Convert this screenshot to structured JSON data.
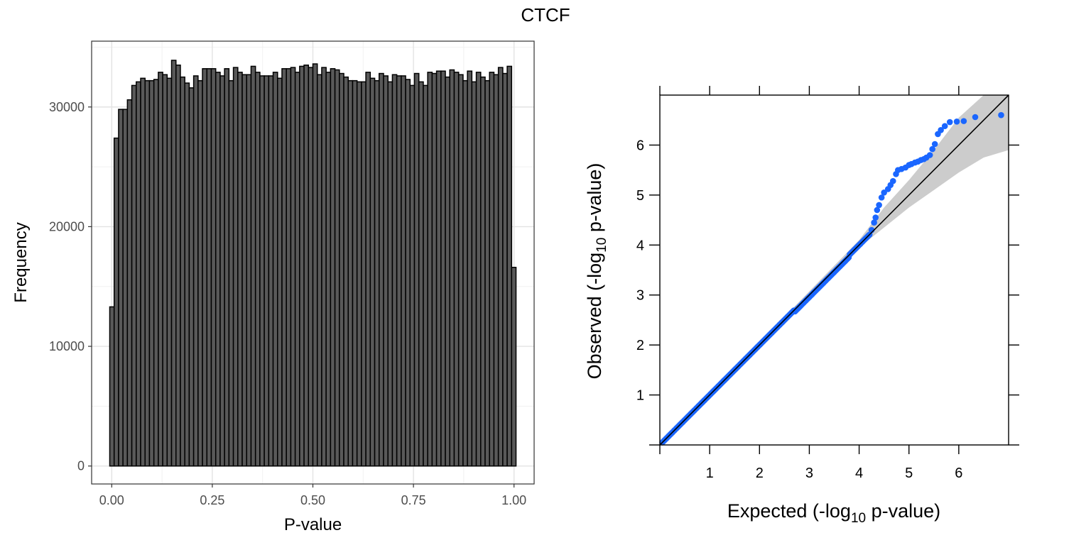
{
  "title": "CTCF",
  "chart_data": [
    {
      "type": "bar",
      "xlabel": "P-value",
      "ylabel": "Frequency",
      "xlim": [
        -0.05,
        1.05
      ],
      "ylim": [
        -1500,
        35500
      ],
      "xticks": [
        0,
        0.25,
        0.5,
        0.75,
        1
      ],
      "xtick_labels": [
        "0.00",
        "0.25",
        "0.50",
        "0.75",
        "1.00"
      ],
      "yticks": [
        0,
        10000,
        20000,
        30000
      ],
      "ytick_labels": [
        "0",
        "10000",
        "20000",
        "30000"
      ],
      "grid": true,
      "bin_range": [
        -0.005,
        1.005
      ],
      "values": [
        13300,
        27400,
        29800,
        29800,
        30600,
        31800,
        32100,
        32400,
        32200,
        32200,
        32300,
        32900,
        32700,
        32400,
        33900,
        33500,
        32500,
        32000,
        31600,
        32600,
        32200,
        33200,
        33200,
        33200,
        32900,
        32600,
        33200,
        32200,
        33300,
        32900,
        32700,
        32700,
        33400,
        32900,
        32600,
        32600,
        32600,
        32900,
        32400,
        33200,
        33200,
        33300,
        32900,
        33400,
        33500,
        33300,
        33600,
        32700,
        33300,
        32900,
        33200,
        33100,
        32800,
        32500,
        32200,
        32200,
        32100,
        32100,
        32900,
        32400,
        32200,
        32800,
        32600,
        32100,
        32700,
        32600,
        32600,
        32300,
        31800,
        32800,
        32100,
        31800,
        32900,
        32800,
        33000,
        33000,
        32500,
        33100,
        32900,
        32700,
        32200,
        33000,
        32100,
        32900,
        32500,
        32200,
        32900,
        32700,
        33300,
        32800,
        33400,
        16600
      ]
    },
    {
      "type": "scatter",
      "xlabel_main": "Expected (-log",
      "xlabel_sub": "10",
      "xlabel_tail": " p-value)",
      "ylabel_main": "Observed (-log",
      "ylabel_sub": "10",
      "ylabel_tail": " p-value)",
      "xlim": [
        0,
        7
      ],
      "ylim": [
        0,
        7
      ],
      "xticks": [
        1,
        2,
        3,
        4,
        5,
        6
      ],
      "yticks": [
        1,
        2,
        3,
        4,
        5,
        6
      ],
      "reference_line": [
        [
          0,
          0
        ],
        [
          7,
          7
        ]
      ],
      "band_upper": [
        [
          0,
          0
        ],
        [
          4,
          4.1
        ],
        [
          4.5,
          4.75
        ],
        [
          5,
          5.3
        ],
        [
          5.5,
          5.9
        ],
        [
          6,
          6.55
        ],
        [
          6.5,
          7
        ],
        [
          7,
          7
        ]
      ],
      "band_lower": [
        [
          0,
          0
        ],
        [
          4,
          3.95
        ],
        [
          4.5,
          4.35
        ],
        [
          5,
          4.75
        ],
        [
          5.5,
          5.1
        ],
        [
          6,
          5.45
        ],
        [
          6.5,
          5.75
        ],
        [
          7,
          5.9
        ]
      ],
      "points": [
        [
          4.25,
          4.3
        ],
        [
          4.3,
          4.45
        ],
        [
          4.33,
          4.55
        ],
        [
          4.36,
          4.7
        ],
        [
          4.4,
          4.8
        ],
        [
          4.45,
          4.95
        ],
        [
          4.5,
          5.05
        ],
        [
          4.58,
          5.12
        ],
        [
          4.63,
          5.2
        ],
        [
          4.68,
          5.28
        ],
        [
          4.74,
          5.42
        ],
        [
          4.78,
          5.5
        ],
        [
          4.85,
          5.52
        ],
        [
          4.93,
          5.55
        ],
        [
          5.0,
          5.6
        ],
        [
          5.05,
          5.62
        ],
        [
          5.12,
          5.65
        ],
        [
          5.18,
          5.67
        ],
        [
          5.24,
          5.7
        ],
        [
          5.3,
          5.72
        ],
        [
          5.35,
          5.75
        ],
        [
          5.42,
          5.8
        ],
        [
          5.47,
          5.92
        ],
        [
          5.52,
          6.02
        ],
        [
          5.58,
          6.22
        ],
        [
          5.64,
          6.3
        ],
        [
          5.72,
          6.38
        ],
        [
          5.82,
          6.46
        ],
        [
          5.96,
          6.47
        ],
        [
          6.1,
          6.48
        ],
        [
          6.33,
          6.56
        ],
        [
          6.85,
          6.6
        ]
      ],
      "point_color": "#1a66ff",
      "band_color": "#cccccc"
    }
  ]
}
